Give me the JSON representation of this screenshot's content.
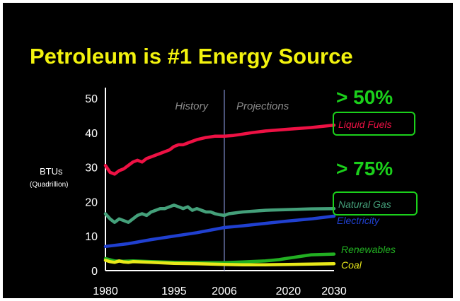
{
  "slide": {
    "title": "Petroleum is #1 Energy Source"
  },
  "chart_data": {
    "type": "line",
    "title": "Petroleum is #1 Energy Source",
    "xlabel": "",
    "ylabel": "BTUs",
    "ylabel_sub": "(Quadrillion)",
    "xlim": [
      1980,
      2030
    ],
    "ylim": [
      0,
      50
    ],
    "x_ticks": [
      "1980",
      "1995",
      "2006",
      "2020",
      "2030"
    ],
    "y_ticks": [
      "0",
      "10",
      "20",
      "30",
      "40",
      "50"
    ],
    "divider_year": 2006,
    "regions": {
      "history": "History",
      "projections": "Projections"
    },
    "annotations": {
      "liquid": "> 50%",
      "gas": "> 75%"
    },
    "grid": false,
    "series": [
      {
        "name": "Liquid Fuels",
        "color": "#ee1144",
        "boxed": true,
        "x": [
          1980,
          1981,
          1982,
          1983,
          1984,
          1985,
          1986,
          1987,
          1988,
          1989,
          1990,
          1991,
          1992,
          1993,
          1994,
          1995,
          1996,
          1997,
          1998,
          1999,
          2000,
          2001,
          2002,
          2003,
          2004,
          2005,
          2006,
          2008,
          2010,
          2012,
          2015,
          2018,
          2020,
          2025,
          2030
        ],
        "y": [
          30.5,
          28.5,
          28,
          29,
          29.5,
          30.5,
          31.5,
          32,
          31.5,
          32.5,
          33,
          33.5,
          34,
          34.5,
          35,
          36,
          36.5,
          36.5,
          37,
          37.5,
          38,
          38.3,
          38.6,
          38.8,
          39,
          39,
          39,
          39.2,
          39.6,
          40,
          40.5,
          40.8,
          41,
          41.5,
          42.2
        ]
      },
      {
        "name": "Natural Gas",
        "color": "#44a07a",
        "boxed": true,
        "x": [
          1980,
          1981,
          1982,
          1983,
          1984,
          1985,
          1986,
          1987,
          1988,
          1989,
          1990,
          1991,
          1992,
          1993,
          1994,
          1995,
          1996,
          1997,
          1998,
          1999,
          2000,
          2001,
          2002,
          2003,
          2004,
          2005,
          2006,
          2007,
          2010,
          2015,
          2020,
          2025,
          2030
        ],
        "y": [
          16.5,
          15,
          14,
          15,
          14.5,
          14,
          15,
          16,
          16.5,
          16,
          17,
          17.5,
          18,
          18,
          18.5,
          19,
          18.5,
          18,
          18.5,
          17.5,
          18,
          17.5,
          17,
          17,
          16.5,
          16.2,
          16,
          16.5,
          17,
          17.5,
          17.7,
          17.9,
          18
        ]
      },
      {
        "name": "Electricity",
        "color": "#2040d0",
        "boxed": false,
        "x": [
          1980,
          1985,
          1990,
          1995,
          2000,
          2006,
          2010,
          2015,
          2020,
          2025,
          2030
        ],
        "y": [
          7,
          7.8,
          9,
          10,
          11,
          12.5,
          13,
          13.7,
          14.4,
          15,
          15.8
        ]
      },
      {
        "name": "Renewables",
        "color": "#22b022",
        "boxed": false,
        "x": [
          1980,
          1982,
          1984,
          1986,
          1990,
          1995,
          2000,
          2003,
          2006,
          2010,
          2015,
          2018,
          2020,
          2025,
          2030
        ],
        "y": [
          3.5,
          2.8,
          2.7,
          2.8,
          2.6,
          2.4,
          2.3,
          2.3,
          2.3,
          2.5,
          2.8,
          3.2,
          3.6,
          4.6,
          4.8
        ]
      },
      {
        "name": "Coal",
        "color": "#e8e81a",
        "boxed": false,
        "x": [
          1980,
          1981,
          1982,
          1983,
          1984,
          1985,
          1986,
          1990,
          1995,
          2000,
          2003,
          2006,
          2010,
          2015,
          2020,
          2025,
          2030
        ],
        "y": [
          3,
          2.6,
          2.4,
          2.8,
          2.5,
          2.4,
          2.6,
          2.4,
          2.1,
          2,
          1.9,
          1.8,
          1.7,
          1.7,
          1.8,
          1.9,
          2
        ]
      }
    ]
  }
}
